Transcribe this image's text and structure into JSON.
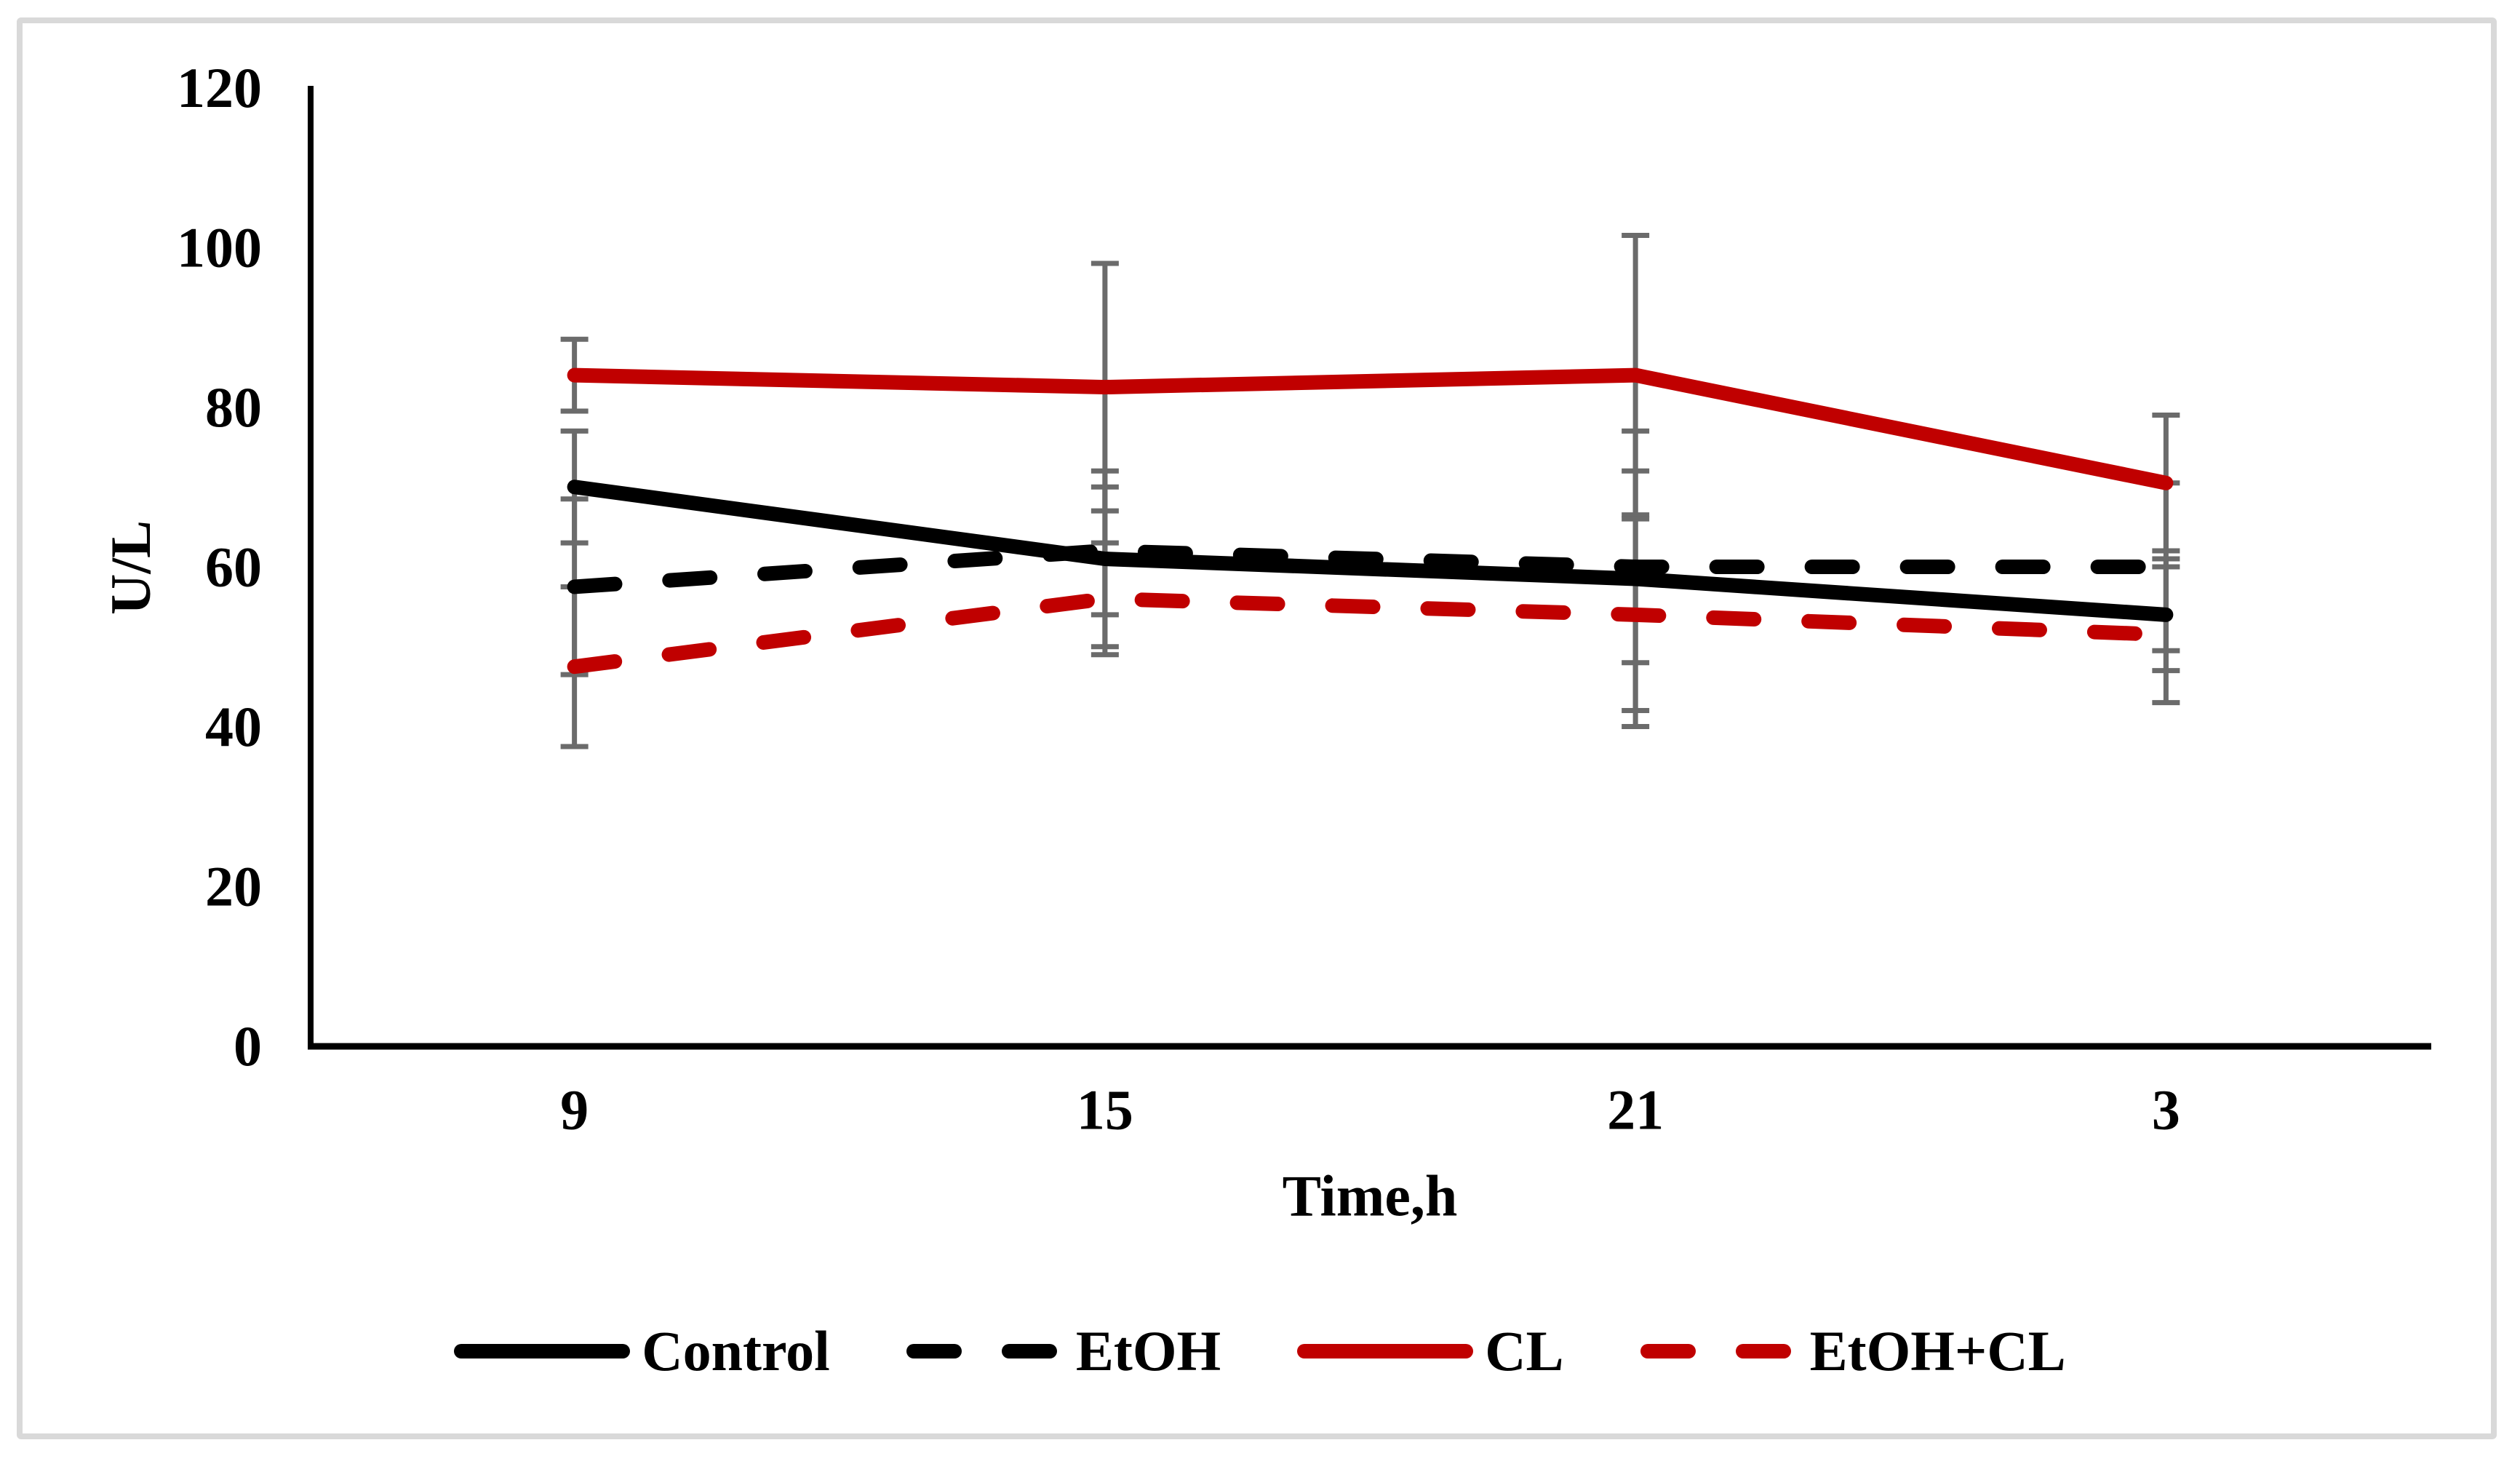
{
  "chart_data": {
    "type": "line",
    "title": "",
    "categories": [
      "9",
      "15",
      "21",
      "3"
    ],
    "xlabel": "Time,h",
    "ylabel": "U/L",
    "ylim": [
      0,
      120
    ],
    "yticks": [
      0,
      20,
      40,
      60,
      80,
      100,
      120
    ],
    "grid": false,
    "legend_position": "bottom",
    "background": "#ffffff",
    "frame_color": "#d9d9d9",
    "axis_color": "#000000",
    "error_bar_color": "#6b6b6b",
    "series": [
      {
        "name": "Control",
        "color": "#000000",
        "style": "solid",
        "values": [
          70,
          61,
          58.5,
          54
        ],
        "errors": [
          7,
          11,
          18.5,
          7
        ]
      },
      {
        "name": "EtOH",
        "color": "#000000",
        "style": "dashed",
        "values": [
          57.5,
          62,
          60,
          60
        ],
        "errors": [
          11,
          8,
          12,
          10.5
        ]
      },
      {
        "name": "CL",
        "color": "#c00000",
        "style": "solid",
        "values": [
          84,
          82.5,
          84,
          70.5
        ],
        "errors": [
          4.5,
          15.5,
          17.5,
          8.5
        ]
      },
      {
        "name": "EtOH+CL",
        "color": "#c00000",
        "style": "dashed",
        "values": [
          47.5,
          56,
          54,
          51.5
        ],
        "errors": [
          10,
          7,
          12,
          8.5
        ]
      }
    ]
  }
}
